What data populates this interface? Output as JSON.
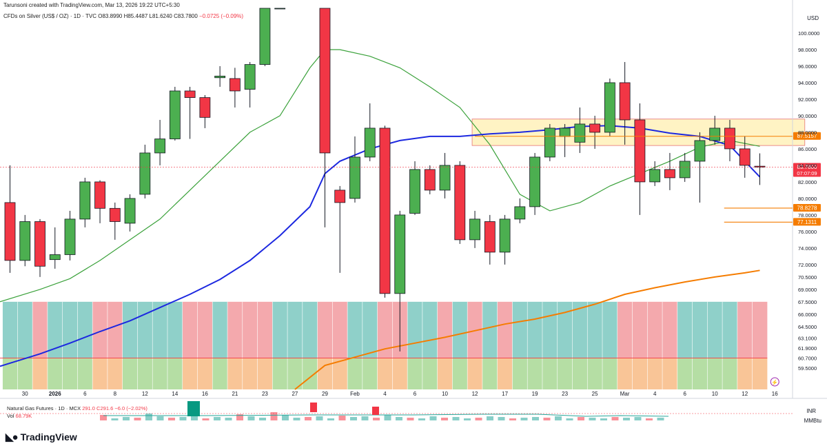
{
  "header": {
    "attribution": "Tarunsoni created with TradingView.com, Mar 13, 2026 19:22 UTC+5:30",
    "symbol": "CFDs on Silver (US$ / OZ) · 1D · TVC",
    "ohlc": "O83.8990 H85.4487 L81.6240 C83.7800",
    "change": "−0.0725 (−0.09%)"
  },
  "currency_main": "USD",
  "sub_pane": {
    "line1": "Natural Gas Futures · 1D · MCX",
    "line1_values": "291.0 C291.6 −6.0 (−2.02%)",
    "vol_label": "Vol",
    "vol_value": "68.79K",
    "currency": "INR",
    "unit": "MMBtu"
  },
  "branding": "TradingView",
  "price_badges": [
    {
      "value": 83.78,
      "label": "83.7800",
      "sublabel": "07:07:09",
      "color": "#f23645"
    },
    {
      "value": 87.5157,
      "label": "87.5157",
      "color": "#f57c00"
    },
    {
      "value": 78.8278,
      "label": "78.8278",
      "color": "#f57c00"
    },
    {
      "value": 77.1311,
      "label": "77.1311",
      "color": "#f57c00"
    }
  ],
  "colors": {
    "up": "#4caf50",
    "down": "#f23645",
    "ma_short": "#3aa13a",
    "ma_mid": "#1c28e0",
    "ma_long": "#f57c00",
    "zone": "#fff3c4",
    "bg_teal": "#8fd0c9",
    "bg_pink": "#f4a9ad",
    "bg_green": "#b5dea4",
    "bg_orange": "#f9c597"
  },
  "chart_data": {
    "type": "candlestick",
    "title": "CFDs on Silver (US$ / OZ) · 1D · TVC",
    "y_axis_side": "right",
    "ylim": [
      56.9,
      103.0
    ],
    "y_ticks": [
      100.0,
      98.0,
      96.0,
      94.0,
      92.0,
      90.0,
      88.0,
      86.0,
      84.0,
      82.0,
      80.0,
      78.0,
      76.0,
      74.0,
      72.0,
      70.5,
      69.0,
      67.5,
      66.0,
      64.5,
      63.1,
      61.9,
      60.7,
      59.5
    ],
    "y_tick_labels": [
      "100.0000",
      "98.0000",
      "96.0000",
      "94.0000",
      "92.0000",
      "90.0000",
      "88.0000",
      "86.0000",
      "84.0000",
      "82.0000",
      "80.0000",
      "78.0000",
      "76.0000",
      "74.0000",
      "72.0000",
      "70.5000",
      "69.0000",
      "67.5000",
      "66.0000",
      "64.5000",
      "63.1000",
      "61.9000",
      "60.7000",
      "59.5000"
    ],
    "x_tick_labels": [
      {
        "i": 1,
        "label": "30"
      },
      {
        "i": 3,
        "label": "2026",
        "bold": true
      },
      {
        "i": 5,
        "label": "6"
      },
      {
        "i": 7,
        "label": "8"
      },
      {
        "i": 9,
        "label": "12"
      },
      {
        "i": 11,
        "label": "14"
      },
      {
        "i": 13,
        "label": "16"
      },
      {
        "i": 15,
        "label": "21"
      },
      {
        "i": 17,
        "label": "23"
      },
      {
        "i": 19,
        "label": "27"
      },
      {
        "i": 21,
        "label": "29"
      },
      {
        "i": 23,
        "label": "Feb"
      },
      {
        "i": 25,
        "label": "4"
      },
      {
        "i": 27,
        "label": "6"
      },
      {
        "i": 29,
        "label": "10"
      },
      {
        "i": 31,
        "label": "12"
      },
      {
        "i": 33,
        "label": "17"
      },
      {
        "i": 35,
        "label": "19"
      },
      {
        "i": 37,
        "label": "23"
      },
      {
        "i": 39,
        "label": "25"
      },
      {
        "i": 41,
        "label": "Mar"
      },
      {
        "i": 43,
        "label": "4"
      },
      {
        "i": 45,
        "label": "6"
      },
      {
        "i": 47,
        "label": "10"
      },
      {
        "i": 49,
        "label": "12"
      },
      {
        "i": 51,
        "label": "16"
      }
    ],
    "candles": [
      {
        "o": 79.5,
        "h": 84.0,
        "l": 71.0,
        "c": 72.5
      },
      {
        "o": 72.5,
        "h": 78.0,
        "l": 71.8,
        "c": 77.2
      },
      {
        "o": 77.2,
        "h": 77.5,
        "l": 70.5,
        "c": 71.8
      },
      {
        "o": 72.6,
        "h": 76.5,
        "l": 71.5,
        "c": 73.2
      },
      {
        "o": 73.2,
        "h": 78.5,
        "l": 72.5,
        "c": 77.5
      },
      {
        "o": 77.5,
        "h": 82.5,
        "l": 76.5,
        "c": 82.0
      },
      {
        "o": 82.0,
        "h": 82.2,
        "l": 77.0,
        "c": 78.8
      },
      {
        "o": 78.8,
        "h": 79.5,
        "l": 75.0,
        "c": 77.2
      },
      {
        "o": 77.0,
        "h": 80.5,
        "l": 76.0,
        "c": 80.0
      },
      {
        "o": 80.5,
        "h": 86.5,
        "l": 80.0,
        "c": 85.5
      },
      {
        "o": 85.5,
        "h": 89.5,
        "l": 84.0,
        "c": 87.2
      },
      {
        "o": 87.2,
        "h": 93.5,
        "l": 87.0,
        "c": 93.0
      },
      {
        "o": 93.0,
        "h": 93.5,
        "l": 87.2,
        "c": 92.2
      },
      {
        "o": 92.2,
        "h": 92.5,
        "l": 88.5,
        "c": 89.8
      },
      {
        "o": 94.6,
        "h": 96.0,
        "l": 93.5,
        "c": 94.8
      },
      {
        "o": 94.5,
        "h": 95.8,
        "l": 91.0,
        "c": 93.0
      },
      {
        "o": 93.2,
        "h": 96.5,
        "l": 91.0,
        "c": 96.2
      },
      {
        "o": 96.2,
        "h": 104.0,
        "l": 96.0,
        "c": 103.0
      },
      {
        "o": 103.0,
        "h": 104.0,
        "l": 103.0,
        "c": 103.0
      },
      {
        "o": 103.0,
        "h": 103.0,
        "l": 103.0,
        "c": 103.0
      },
      {
        "o": 103.0,
        "h": 103.0,
        "l": 103.0,
        "c": 103.0
      },
      {
        "o": 103.0,
        "h": 103.0,
        "l": 76.5,
        "c": 85.5
      },
      {
        "o": 81.0,
        "h": 81.5,
        "l": 71.0,
        "c": 79.5
      },
      {
        "o": 80.0,
        "h": 87.5,
        "l": 79.5,
        "c": 85.0
      },
      {
        "o": 85.0,
        "h": 91.5,
        "l": 84.5,
        "c": 88.5
      },
      {
        "o": 88.5,
        "h": 88.8,
        "l": 68.0,
        "c": 68.5
      },
      {
        "o": 68.5,
        "h": 78.5,
        "l": 61.5,
        "c": 78.0
      },
      {
        "o": 78.2,
        "h": 84.5,
        "l": 78.0,
        "c": 83.5
      },
      {
        "o": 83.5,
        "h": 84.0,
        "l": 80.5,
        "c": 81.0
      },
      {
        "o": 81.0,
        "h": 85.5,
        "l": 80.0,
        "c": 84.0
      },
      {
        "o": 84.0,
        "h": 84.5,
        "l": 74.5,
        "c": 75.0
      },
      {
        "o": 75.0,
        "h": 78.5,
        "l": 74.0,
        "c": 77.5
      },
      {
        "o": 77.2,
        "h": 78.0,
        "l": 72.0,
        "c": 73.5
      },
      {
        "o": 73.5,
        "h": 78.0,
        "l": 72.0,
        "c": 77.5
      },
      {
        "o": 77.5,
        "h": 80.0,
        "l": 77.0,
        "c": 79.0
      },
      {
        "o": 79.0,
        "h": 85.5,
        "l": 78.0,
        "c": 85.0
      },
      {
        "o": 85.0,
        "h": 89.0,
        "l": 84.5,
        "c": 88.5
      },
      {
        "o": 87.5,
        "h": 89.0,
        "l": 85.0,
        "c": 88.5
      },
      {
        "o": 86.8,
        "h": 91.0,
        "l": 85.5,
        "c": 89.0
      },
      {
        "o": 89.0,
        "h": 90.0,
        "l": 86.0,
        "c": 88.0
      },
      {
        "o": 88.0,
        "h": 94.5,
        "l": 87.5,
        "c": 94.0
      },
      {
        "o": 94.0,
        "h": 96.5,
        "l": 86.5,
        "c": 89.5
      },
      {
        "o": 89.5,
        "h": 91.5,
        "l": 78.0,
        "c": 82.0
      },
      {
        "o": 82.0,
        "h": 84.5,
        "l": 81.5,
        "c": 83.5
      },
      {
        "o": 83.5,
        "h": 85.5,
        "l": 81.0,
        "c": 82.5
      },
      {
        "o": 82.5,
        "h": 85.5,
        "l": 82.0,
        "c": 84.5
      },
      {
        "o": 84.5,
        "h": 88.0,
        "l": 79.5,
        "c": 87.0
      },
      {
        "o": 87.0,
        "h": 90.0,
        "l": 86.5,
        "c": 88.5
      },
      {
        "o": 88.5,
        "h": 89.5,
        "l": 84.5,
        "c": 86.0
      },
      {
        "o": 86.0,
        "h": 87.5,
        "l": 82.5,
        "c": 84.0
      },
      {
        "o": 83.899,
        "h": 85.4487,
        "l": 81.624,
        "c": 83.78
      }
    ],
    "ma_short": [
      [
        0,
        67.5
      ],
      [
        2,
        69.0
      ],
      [
        4,
        70.3
      ],
      [
        6,
        72.5
      ],
      [
        8,
        75.0
      ],
      [
        10,
        77.5
      ],
      [
        12,
        81.0
      ],
      [
        14,
        84.5
      ],
      [
        16,
        88.0
      ],
      [
        18,
        90.0
      ],
      [
        20,
        95.8
      ],
      [
        21,
        98.0
      ],
      [
        22,
        98.0
      ],
      [
        24,
        97.2
      ],
      [
        26,
        95.8
      ],
      [
        28,
        93.5
      ],
      [
        30,
        91.0
      ],
      [
        32,
        86.5
      ],
      [
        34,
        80.5
      ],
      [
        36,
        78.5
      ],
      [
        38,
        79.5
      ],
      [
        40,
        81.5
      ],
      [
        42,
        83.0
      ],
      [
        44,
        84.5
      ],
      [
        46,
        86.2
      ],
      [
        48,
        87.0
      ],
      [
        50,
        86.3
      ]
    ],
    "ma_mid": [
      [
        0,
        59.7
      ],
      [
        2,
        61.2
      ],
      [
        4,
        62.5
      ],
      [
        6,
        63.9
      ],
      [
        8,
        65.2
      ],
      [
        10,
        66.8
      ],
      [
        12,
        68.4
      ],
      [
        14,
        70.2
      ],
      [
        16,
        72.5
      ],
      [
        18,
        75.5
      ],
      [
        20,
        79.0
      ],
      [
        21,
        83.0
      ],
      [
        22,
        84.5
      ],
      [
        24,
        86.0
      ],
      [
        26,
        87.0
      ],
      [
        28,
        87.5
      ],
      [
        30,
        87.5
      ],
      [
        32,
        87.8
      ],
      [
        34,
        88.0
      ],
      [
        36,
        88.3
      ],
      [
        38,
        88.7
      ],
      [
        40,
        88.8
      ],
      [
        42,
        88.5
      ],
      [
        44,
        87.9
      ],
      [
        46,
        87.5
      ],
      [
        48,
        86.4
      ],
      [
        50,
        82.6
      ]
    ],
    "ma_long": [
      [
        19,
        56.9
      ],
      [
        21,
        59.8
      ],
      [
        23,
        60.8
      ],
      [
        25,
        61.8
      ],
      [
        27,
        62.5
      ],
      [
        29,
        63.2
      ],
      [
        31,
        64.0
      ],
      [
        33,
        64.8
      ],
      [
        35,
        65.4
      ],
      [
        37,
        66.2
      ],
      [
        39,
        67.2
      ],
      [
        41,
        68.4
      ],
      [
        43,
        69.2
      ],
      [
        45,
        69.9
      ],
      [
        47,
        70.5
      ],
      [
        49,
        71.0
      ],
      [
        50,
        71.3
      ]
    ],
    "zone": {
      "i_start": 31,
      "i_end": 53,
      "y_top": 89.6,
      "y_bottom": 86.4
    },
    "bg_columns": [
      "teal",
      "teal",
      "pink",
      "teal",
      "teal",
      "teal",
      "pink",
      "pink",
      "teal",
      "teal",
      "teal",
      "teal",
      "pink",
      "pink",
      "teal",
      "pink",
      "pink",
      "pink",
      "teal",
      "teal",
      "teal",
      "pink",
      "pink",
      "teal",
      "teal",
      "pink",
      "pink",
      "teal",
      "teal",
      "pink",
      "teal",
      "pink",
      "teal",
      "pink",
      "teal",
      "teal",
      "teal",
      "teal",
      "teal",
      "teal",
      "teal",
      "pink",
      "pink",
      "pink",
      "pink",
      "teal",
      "teal",
      "teal",
      "teal",
      "pink",
      "pink"
    ],
    "sub_volume": [
      8,
      3,
      5,
      4,
      10,
      6,
      4,
      5,
      7,
      3,
      5,
      4,
      9,
      6,
      4,
      12,
      8,
      4,
      5,
      6,
      3,
      7,
      5,
      6,
      4,
      8,
      5,
      4,
      3,
      6,
      4,
      5,
      3,
      4,
      6,
      5,
      3,
      4,
      5,
      4,
      6,
      3,
      5,
      4,
      3,
      5,
      4,
      5,
      3,
      4
    ]
  }
}
